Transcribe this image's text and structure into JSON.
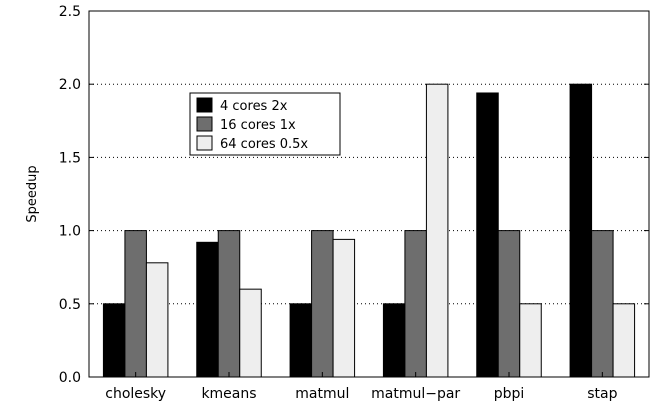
{
  "chart_data": {
    "type": "bar",
    "title": "",
    "xlabel": "",
    "ylabel": "Speedup",
    "ylim": [
      0,
      2.5
    ],
    "yticks": [
      "0.0",
      "0.5",
      "1.0",
      "1.5",
      "2.0",
      "2.5"
    ],
    "grid": "horizontal dotted",
    "legend_position": "upper-left-inside",
    "categories": [
      "cholesky",
      "kmeans",
      "matmul",
      "matmul−par",
      "pbpi",
      "stap"
    ],
    "series": [
      {
        "name": "4 cores 2x",
        "color": "#000000",
        "values": [
          0.5,
          0.92,
          0.5,
          0.5,
          1.94,
          2.0
        ]
      },
      {
        "name": "16 cores 1x",
        "color": "#6e6e6e",
        "values": [
          1.0,
          1.0,
          1.0,
          1.0,
          1.0,
          1.0
        ]
      },
      {
        "name": "64 cores 0.5x",
        "color": "#eeeeee",
        "values": [
          0.78,
          0.6,
          0.94,
          2.0,
          0.5,
          0.5
        ]
      }
    ]
  }
}
